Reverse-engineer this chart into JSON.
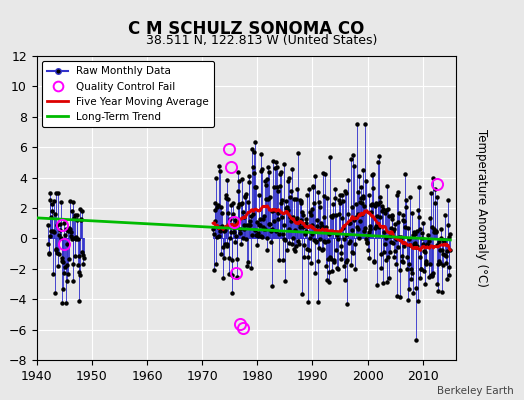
{
  "title": "C M SCHULZ SONOMA CO",
  "subtitle": "38.511 N, 122.813 W (United States)",
  "ylabel": "Temperature Anomaly (°C)",
  "credit": "Berkeley Earth",
  "xlim": [
    1940,
    2016
  ],
  "ylim": [
    -8,
    12
  ],
  "yticks": [
    -8,
    -6,
    -4,
    -2,
    0,
    2,
    4,
    6,
    8,
    10,
    12
  ],
  "xticks": [
    1940,
    1950,
    1960,
    1970,
    1980,
    1990,
    2000,
    2010
  ],
  "fig_bg": "#e8e8e8",
  "ax_bg": "#e8e8e8",
  "raw_color": "#3333cc",
  "raw_marker_color": "#000000",
  "qc_color": "#ff00ff",
  "moving_avg_color": "#dd0000",
  "trend_color": "#00bb00",
  "trend_x": [
    1940,
    2015
  ],
  "trend_y": [
    1.35,
    -0.1
  ],
  "seg1_start": 1942.0,
  "seg1_end": 1948.5,
  "seg2_start": 1972.0,
  "seg2_end": 2015.0,
  "seed": 12345,
  "qc_points": [
    [
      1944.5,
      0.9
    ],
    [
      1945.0,
      -0.4
    ],
    [
      1974.9,
      5.9
    ],
    [
      1975.3,
      4.7
    ],
    [
      1975.7,
      1.1
    ],
    [
      1976.2,
      -2.3
    ],
    [
      1976.9,
      -5.6
    ],
    [
      1977.4,
      -5.9
    ],
    [
      2012.5,
      3.6
    ]
  ]
}
